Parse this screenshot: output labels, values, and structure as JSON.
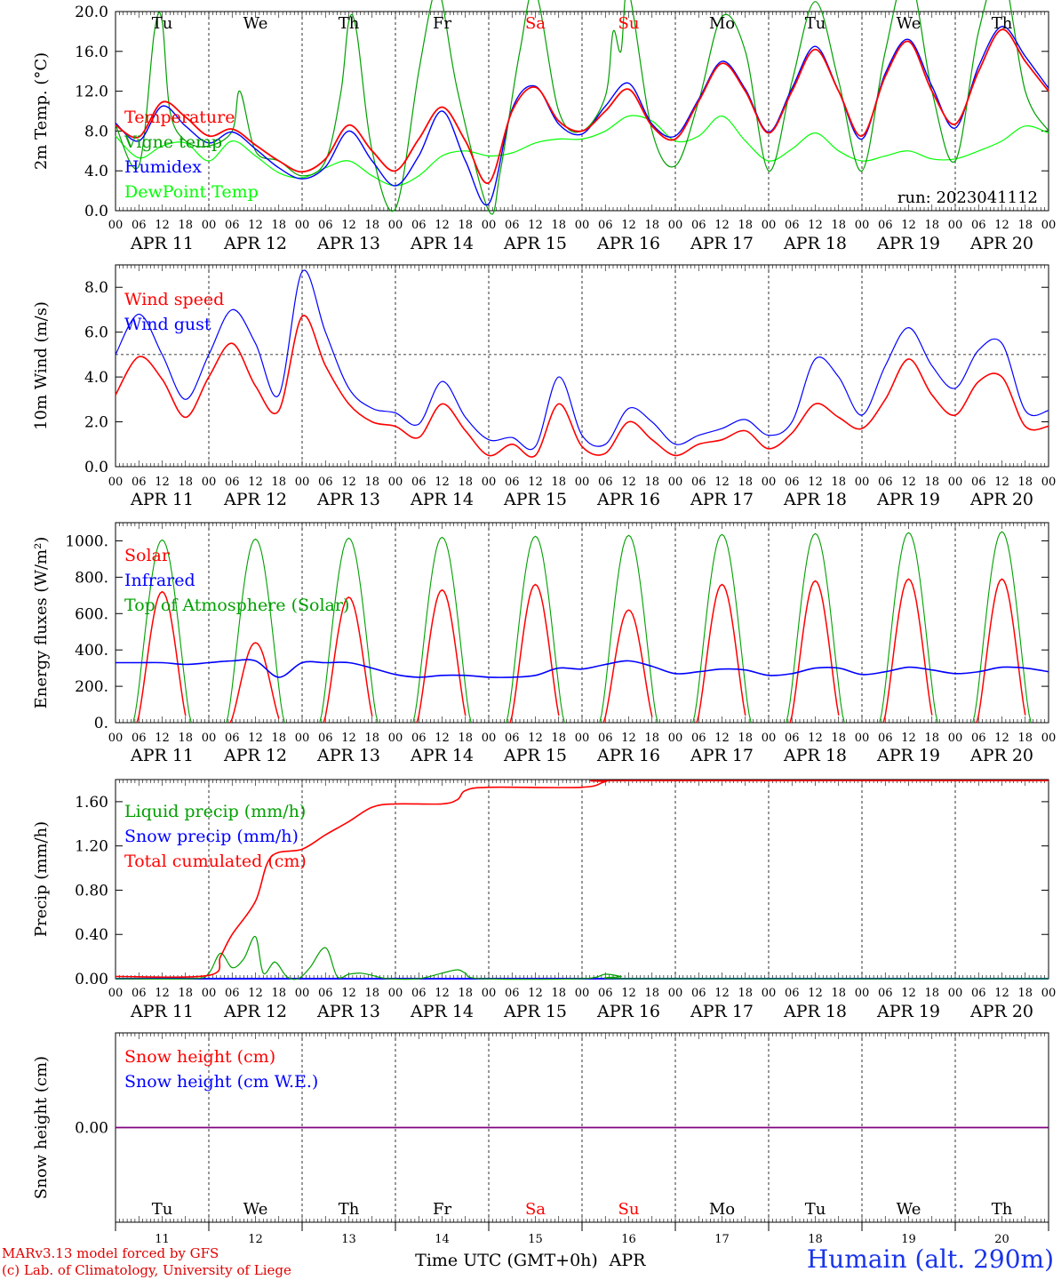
{
  "days": [
    "APR 11",
    "APR 12",
    "APR 13",
    "APR 14",
    "APR 15",
    "APR 16",
    "APR 17",
    "APR 18",
    "APR 19",
    "APR 20"
  ],
  "weekdays": [
    "Tu",
    "We",
    "Th",
    "Fr",
    "Sa",
    "Su",
    "Mo",
    "Tu",
    "We",
    "Th"
  ],
  "weekend_indices": [
    4,
    5
  ],
  "hour_labels": [
    "00",
    "06",
    "12",
    "18"
  ],
  "day_numbers": [
    "11",
    "12",
    "13",
    "14",
    "15",
    "16",
    "17",
    "18",
    "19",
    "20"
  ],
  "colors": {
    "temperature": "#ff0000",
    "vigne": "#00a000",
    "humidex": "#0000ff",
    "dewpoint": "#00ff00",
    "wind_speed": "#ff0000",
    "wind_gust": "#0000ff",
    "solar": "#ff0000",
    "infrared": "#0000ff",
    "toa": "#00a000",
    "liquid": "#00a000",
    "snow_precip": "#0000ff",
    "cumulated": "#ff0000",
    "snow_height": "#ff0000",
    "snow_we": "#0000ff",
    "snow_line": "#800080",
    "weekday": "#000000",
    "weekend": "#ff0000"
  },
  "chart_data": [
    {
      "type": "line",
      "ylabel": "2m Temp. (°C)",
      "ylim": [
        0,
        20
      ],
      "yticks": [
        "0.0",
        "4.0",
        "8.0",
        "12.0",
        "16.0",
        "20.0"
      ],
      "annotation": "run: 2023041112",
      "x_unit": "hours since 2023-04-11 00 UTC",
      "series": [
        {
          "name": "Temperature",
          "x": [
            0,
            6,
            12,
            18,
            24,
            30,
            36,
            42,
            48,
            54,
            60,
            66,
            72,
            78,
            84,
            90,
            96,
            102,
            108,
            114,
            120,
            126,
            132,
            138,
            144,
            150,
            156,
            162,
            168,
            174,
            180,
            186,
            192,
            198,
            204,
            210,
            216,
            222,
            228,
            234,
            240
          ],
          "y": [
            8.6,
            7.4,
            10.9,
            9.4,
            7.5,
            8.2,
            6.6,
            5.0,
            3.9,
            5.2,
            8.6,
            6.0,
            4.0,
            7.2,
            10.4,
            7.0,
            2.8,
            10.0,
            12.4,
            9.0,
            8.0,
            10.0,
            12.2,
            8.5,
            7.2,
            11.0,
            14.8,
            12.0,
            7.8,
            12.0,
            16.2,
            12.0,
            7.5,
            13.5,
            17.0,
            12.0,
            8.7,
            14.0,
            18.2,
            15.0,
            12.0
          ]
        },
        {
          "name": "Vigne temp",
          "x": [
            0,
            6,
            10,
            12,
            14,
            18,
            24,
            30,
            32,
            36,
            42,
            48,
            54,
            58,
            60,
            62,
            66,
            72,
            78,
            82,
            84,
            88,
            96,
            99,
            104,
            108,
            114,
            120,
            126,
            128,
            130,
            132,
            138,
            144,
            150,
            156,
            162,
            168,
            174,
            180,
            186,
            192,
            198,
            204,
            210,
            216,
            222,
            228,
            234,
            240
          ],
          "y": [
            8.6,
            4.5,
            18.0,
            19.0,
            10.0,
            7.0,
            6.5,
            8.0,
            12.0,
            6.0,
            5.0,
            3.5,
            5.0,
            12.0,
            19.0,
            18.0,
            6.0,
            0.2,
            14.0,
            22.0,
            21.0,
            12.0,
            0.0,
            4.0,
            16.0,
            22.0,
            10.0,
            8.0,
            11.5,
            18.0,
            16.0,
            22.0,
            8.0,
            4.5,
            11.0,
            19.5,
            16.0,
            4.0,
            13.0,
            21.0,
            13.0,
            4.0,
            16.0,
            24.0,
            12.0,
            5.0,
            18.0,
            24.0,
            12.0,
            8.0
          ]
        },
        {
          "name": "Humidex",
          "x": [
            0,
            6,
            12,
            18,
            24,
            30,
            36,
            42,
            48,
            54,
            60,
            66,
            72,
            78,
            84,
            90,
            96,
            102,
            108,
            114,
            120,
            126,
            132,
            138,
            144,
            150,
            156,
            162,
            168,
            174,
            180,
            186,
            192,
            198,
            204,
            210,
            216,
            222,
            228,
            234,
            240
          ],
          "y": [
            8.8,
            7.0,
            10.5,
            8.5,
            6.8,
            7.9,
            6.2,
            4.3,
            3.2,
            4.4,
            8.0,
            5.0,
            2.5,
            5.5,
            10.0,
            5.0,
            0.7,
            10.2,
            12.5,
            8.7,
            7.7,
            10.5,
            12.8,
            8.7,
            7.5,
            11.2,
            15.0,
            12.2,
            7.9,
            12.3,
            16.5,
            12.0,
            7.2,
            13.8,
            17.2,
            12.5,
            8.3,
            14.5,
            18.5,
            15.5,
            12.3
          ]
        },
        {
          "name": "DewPoint Temp",
          "x": [
            0,
            6,
            12,
            18,
            24,
            30,
            36,
            42,
            48,
            54,
            60,
            66,
            72,
            78,
            84,
            90,
            96,
            102,
            108,
            114,
            120,
            126,
            132,
            138,
            144,
            150,
            156,
            162,
            168,
            174,
            180,
            186,
            192,
            198,
            204,
            210,
            216,
            222,
            228,
            234,
            240
          ],
          "y": [
            7.5,
            5.3,
            6.5,
            6.8,
            5.0,
            7.0,
            5.5,
            3.8,
            3.3,
            4.3,
            5.0,
            3.5,
            2.5,
            3.5,
            5.5,
            6.0,
            5.5,
            5.8,
            6.8,
            7.2,
            7.2,
            8.0,
            9.5,
            9.0,
            7.0,
            7.5,
            9.5,
            7.0,
            5.0,
            6.2,
            7.8,
            6.0,
            5.0,
            5.5,
            6.0,
            5.2,
            5.2,
            6.0,
            7.0,
            8.5,
            7.8
          ]
        }
      ]
    },
    {
      "type": "line",
      "ylabel": "10m Wind (m/s)",
      "ylim": [
        0,
        9
      ],
      "yticks": [
        "0.0",
        "2.0",
        "4.0",
        "6.0",
        "8.0"
      ],
      "reference_line": 5,
      "x_unit": "hours since 2023-04-11 00 UTC",
      "series": [
        {
          "name": "Wind speed",
          "x": [
            0,
            6,
            12,
            18,
            24,
            30,
            36,
            42,
            48,
            54,
            60,
            66,
            72,
            78,
            84,
            90,
            96,
            102,
            108,
            114,
            120,
            126,
            132,
            138,
            144,
            150,
            156,
            162,
            168,
            174,
            180,
            186,
            192,
            198,
            204,
            210,
            216,
            222,
            228,
            234,
            240
          ],
          "y": [
            3.2,
            4.9,
            3.9,
            2.2,
            4.0,
            5.5,
            3.6,
            2.5,
            6.7,
            4.5,
            2.8,
            2.0,
            1.8,
            1.3,
            2.8,
            1.6,
            0.5,
            1.0,
            0.5,
            2.8,
            0.9,
            0.6,
            2.0,
            1.2,
            0.5,
            1.0,
            1.2,
            1.6,
            0.8,
            1.5,
            2.8,
            2.2,
            1.7,
            3.0,
            4.8,
            3.2,
            2.3,
            3.8,
            4.0,
            1.8,
            1.8
          ]
        },
        {
          "name": "Wind gust",
          "x": [
            0,
            6,
            12,
            18,
            24,
            30,
            36,
            42,
            48,
            54,
            60,
            66,
            72,
            78,
            84,
            90,
            96,
            102,
            108,
            114,
            120,
            126,
            132,
            138,
            144,
            150,
            156,
            162,
            168,
            174,
            180,
            186,
            192,
            198,
            204,
            210,
            216,
            222,
            228,
            234,
            240
          ],
          "y": [
            5.0,
            6.8,
            5.0,
            3.0,
            5.0,
            7.0,
            5.5,
            3.2,
            8.7,
            6.0,
            3.5,
            2.6,
            2.4,
            1.9,
            3.8,
            2.2,
            1.2,
            1.3,
            0.9,
            4.0,
            1.4,
            1.0,
            2.6,
            2.0,
            1.0,
            1.4,
            1.7,
            2.1,
            1.4,
            2.0,
            4.8,
            4.0,
            2.3,
            4.5,
            6.2,
            4.5,
            3.5,
            5.2,
            5.5,
            2.5,
            2.5
          ]
        }
      ]
    },
    {
      "type": "line",
      "ylabel": "Energy fluxes (W/m²)",
      "ylim": [
        0,
        1100
      ],
      "yticks": [
        "0.",
        "200.",
        "400.",
        "600.",
        "800.",
        "1000."
      ],
      "x_unit": "hours since 2023-04-11 00 UTC",
      "series": [
        {
          "name": "Solar",
          "daily_peaks": [
            720,
            440,
            690,
            730,
            760,
            620,
            760,
            780,
            790,
            790
          ]
        },
        {
          "name": "Infrared",
          "x": [
            0,
            6,
            12,
            18,
            24,
            30,
            36,
            42,
            48,
            54,
            60,
            66,
            72,
            78,
            84,
            90,
            96,
            102,
            108,
            114,
            120,
            126,
            132,
            138,
            144,
            150,
            156,
            162,
            168,
            174,
            180,
            186,
            192,
            198,
            204,
            210,
            216,
            222,
            228,
            234,
            240
          ],
          "y": [
            330,
            330,
            330,
            320,
            330,
            340,
            340,
            250,
            330,
            330,
            330,
            300,
            265,
            250,
            260,
            260,
            250,
            250,
            260,
            300,
            295,
            320,
            340,
            310,
            270,
            280,
            295,
            290,
            260,
            270,
            300,
            300,
            265,
            280,
            305,
            290,
            270,
            280,
            305,
            300,
            280
          ]
        },
        {
          "name": "Top of Atmosphere (Solar)",
          "daily_peaks": [
            1005,
            1010,
            1015,
            1020,
            1025,
            1030,
            1035,
            1040,
            1045,
            1050
          ]
        }
      ]
    },
    {
      "type": "line",
      "ylabel": "Precip (mm/h)",
      "ylim": [
        0,
        1.8
      ],
      "yticks": [
        "0.00",
        "0.40",
        "0.80",
        "1.20",
        "1.60"
      ],
      "x_unit": "hours since 2023-04-11 00 UTC",
      "series": [
        {
          "name": "Liquid precip (mm/h)",
          "x": [
            0,
            20,
            24,
            27,
            30,
            33,
            36,
            38,
            41,
            44,
            47,
            50,
            54,
            57,
            60,
            63,
            66,
            70,
            78,
            84,
            88,
            90,
            94,
            120,
            126,
            130,
            135,
            240
          ],
          "y": [
            0.0,
            0.0,
            0.05,
            0.23,
            0.1,
            0.18,
            0.38,
            0.05,
            0.15,
            0.02,
            0.0,
            0.1,
            0.28,
            0.02,
            0.04,
            0.05,
            0.03,
            0.0,
            0.0,
            0.05,
            0.08,
            0.05,
            0.0,
            0.0,
            0.04,
            0.02,
            0.0,
            0.0
          ]
        },
        {
          "name": "Snow precip (mm/h)",
          "x": [
            0,
            240
          ],
          "y": [
            0,
            0
          ]
        },
        {
          "name": "Total cumulated (cm)",
          "x": [
            0,
            24,
            27,
            30,
            36,
            40,
            48,
            54,
            60,
            66,
            72,
            84,
            88,
            90,
            96,
            120,
            126,
            132,
            240
          ],
          "y": [
            0.02,
            0.03,
            0.2,
            0.4,
            0.7,
            1.1,
            1.17,
            1.3,
            1.42,
            1.55,
            1.58,
            1.58,
            1.62,
            1.7,
            1.73,
            1.73,
            1.78,
            1.79,
            1.79
          ]
        }
      ]
    },
    {
      "type": "line",
      "ylabel": "Snow height (cm)",
      "ylim": [
        -1,
        1
      ],
      "yticks": [
        "0.00"
      ],
      "x_unit": "hours since 2023-04-11 00 UTC",
      "series": [
        {
          "name": "Snow height (cm)",
          "x": [
            0,
            240
          ],
          "y": [
            0,
            0
          ]
        },
        {
          "name": "Snow height (cm W.E.)",
          "x": [
            0,
            240
          ],
          "y": [
            0,
            0
          ]
        }
      ]
    }
  ],
  "footer": {
    "credit_line1": "MARv3.13 model forced by GFS",
    "credit_line2": "(c) Lab. of Climatology, University of Liege",
    "xlabel": "Time UTC (GMT+0h)",
    "month": "APR",
    "station": "Humain (alt. 290m)"
  }
}
